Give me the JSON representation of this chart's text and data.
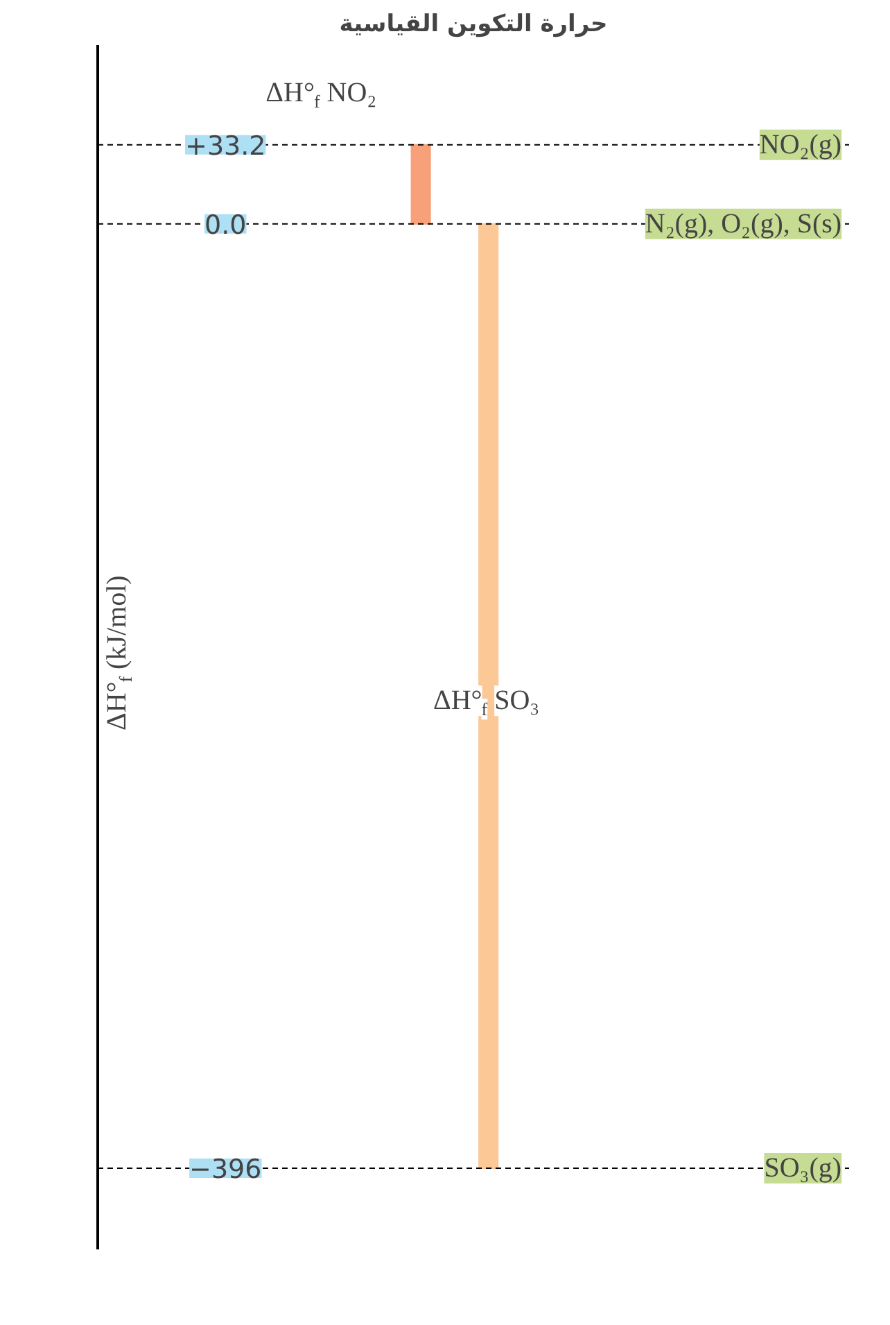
{
  "chart_data": {
    "type": "bar",
    "title": "حرارة التكوين القياسية",
    "ylabel": "ΔH°$_{f}$ (kJ/mol)",
    "categories": [
      null,
      null
    ],
    "values": [
      33.2,
      -396
    ],
    "base": [
      0,
      0
    ],
    "colors": [
      "#f8a07a",
      "#fbc896"
    ],
    "ylim": [
      -430,
      75
    ],
    "yticks": [
      {
        "value": 33.2,
        "label": "+33.2"
      },
      {
        "value": 0,
        "label": "0.0"
      },
      {
        "value": -396,
        "label": "−396"
      }
    ],
    "ref_lines": [
      {
        "axis": "y",
        "value": 33.2,
        "label": "NO₂(g)",
        "line_style": "dashed"
      },
      {
        "axis": "y",
        "value": 0,
        "label": "N₂(g), O₂(g), S(s)",
        "line_style": "dashed"
      },
      {
        "axis": "y",
        "value": -396,
        "label": "SO₃(g)",
        "line_style": "dashed"
      }
    ],
    "annotations": [
      "ΔH°$_{f}$ NO₂",
      "ΔH°$_{f}$ SO₃"
    ],
    "grid": false
  }
}
